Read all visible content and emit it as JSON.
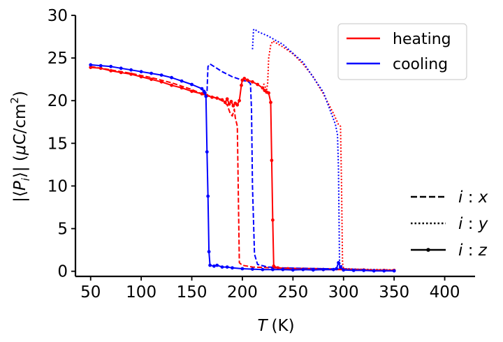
{
  "chart_data": {
    "type": "line",
    "xlabel_var": "T",
    "xlabel_unit": "(K)",
    "ylabel_prefix": "|⟨",
    "ylabel_var": "P",
    "ylabel_sub": "i",
    "ylabel_mid": "⟩| (",
    "ylabel_mu": "μ",
    "ylabel_unit": "C/cm",
    "ylabel_sup": "2",
    "ylabel_end": ")",
    "xlim": [
      35,
      430
    ],
    "ylim": [
      -0.6,
      30
    ],
    "xticks": [
      50,
      100,
      150,
      200,
      250,
      300,
      350,
      400
    ],
    "yticks": [
      0,
      5,
      10,
      15,
      20,
      25,
      30
    ],
    "colors": {
      "heating": "#ff0000",
      "cooling": "#0000ff"
    },
    "legend_colors": [
      {
        "label": "heating",
        "color": "#ff0000"
      },
      {
        "label": "cooling",
        "color": "#0000ff"
      }
    ],
    "legend_components": [
      {
        "var": "i",
        "sep": " : ",
        "comp": "x",
        "style": "dashed"
      },
      {
        "var": "i",
        "sep": " : ",
        "comp": "y",
        "style": "dotted"
      },
      {
        "var": "i",
        "sep": " : ",
        "comp": "z",
        "style": "solid-marker"
      }
    ],
    "series": [
      {
        "name": "heating x",
        "color": "heating",
        "style": "dashed",
        "x": [
          50,
          70,
          90,
          110,
          130,
          150,
          160,
          165,
          170,
          180,
          185,
          188,
          190,
          192,
          193,
          195,
          197,
          200,
          205,
          210,
          220,
          230,
          250,
          280,
          300,
          320
        ],
        "y": [
          24.0,
          23.6,
          23.2,
          22.7,
          22.1,
          21.3,
          20.8,
          20.6,
          20.5,
          20.0,
          19.5,
          18.5,
          18.2,
          19.0,
          18.0,
          17.0,
          1.0,
          0.7,
          0.6,
          0.5,
          0.45,
          0.4,
          0.35,
          0.3,
          0.25,
          0.2
        ]
      },
      {
        "name": "cooling x",
        "color": "cooling",
        "style": "dashed",
        "x": [
          320,
          300,
          280,
          260,
          240,
          225,
          215,
          212,
          210,
          209,
          208,
          206,
          200,
          190,
          180,
          172,
          168,
          166,
          165
        ],
        "y": [
          0.2,
          0.25,
          0.3,
          0.35,
          0.4,
          0.5,
          0.8,
          2.0,
          10.0,
          19.0,
          22.0,
          22.2,
          22.4,
          22.8,
          23.4,
          24.0,
          24.3,
          24.0,
          21.0
        ]
      },
      {
        "name": "heating y",
        "color": "heating",
        "style": "dotted",
        "x": [
          221,
          223,
          224,
          225,
          226,
          228,
          230,
          240,
          250,
          260,
          270,
          280,
          290,
          295,
          297,
          298,
          299,
          300,
          310,
          330,
          350
        ],
        "y": [
          22.0,
          21.5,
          21.3,
          22.0,
          25.0,
          26.5,
          27.0,
          26.3,
          25.5,
          24.3,
          22.8,
          20.8,
          18.5,
          17.2,
          17.0,
          10.0,
          1.0,
          0.3,
          0.25,
          0.2,
          0.15
        ]
      },
      {
        "name": "cooling y",
        "color": "cooling",
        "style": "dotted",
        "x": [
          350,
          320,
          300,
          296,
          295,
          294,
          292,
          280,
          260,
          240,
          225,
          215,
          212,
          211,
          210
        ],
        "y": [
          0.15,
          0.2,
          0.3,
          1.0,
          12.0,
          16.0,
          17.2,
          21.0,
          24.5,
          26.6,
          27.6,
          28.1,
          28.4,
          28.3,
          26.0
        ]
      },
      {
        "name": "heating z",
        "color": "heating",
        "style": "solid-marker",
        "x": [
          50,
          60,
          70,
          80,
          90,
          100,
          110,
          120,
          130,
          140,
          150,
          160,
          165,
          170,
          175,
          180,
          183,
          185,
          187,
          189,
          191,
          193,
          195,
          197,
          199,
          200,
          202,
          205,
          210,
          215,
          220,
          222,
          224,
          226,
          228,
          229,
          230,
          231,
          235,
          245,
          260,
          280,
          300,
          320,
          340,
          350
        ],
        "y": [
          23.9,
          23.8,
          23.5,
          23.3,
          23.1,
          22.8,
          22.5,
          22.2,
          21.8,
          21.5,
          21.1,
          20.8,
          20.6,
          20.4,
          20.3,
          20.1,
          19.8,
          20.2,
          19.6,
          19.9,
          19.4,
          19.7,
          19.5,
          20.0,
          21.8,
          22.4,
          22.6,
          22.4,
          22.2,
          21.9,
          21.5,
          21.2,
          21.0,
          20.9,
          19.8,
          13.0,
          6.0,
          0.6,
          0.4,
          0.3,
          0.25,
          0.2,
          0.2,
          0.15,
          0.1,
          0.1
        ]
      },
      {
        "name": "cooling z",
        "color": "cooling",
        "style": "solid-marker",
        "x": [
          350,
          340,
          330,
          320,
          310,
          300,
          297,
          295,
          293,
          290,
          280,
          270,
          260,
          250,
          240,
          230,
          220,
          210,
          200,
          190,
          185,
          180,
          175,
          172,
          168,
          167,
          166,
          165,
          164,
          163,
          162,
          160,
          150,
          140,
          130,
          120,
          110,
          100,
          90,
          80,
          70,
          60,
          50
        ],
        "y": [
          0.05,
          0.05,
          0.05,
          0.1,
          0.1,
          0.15,
          0.5,
          1.0,
          0.3,
          0.2,
          0.2,
          0.15,
          0.2,
          0.15,
          0.2,
          0.2,
          0.2,
          0.25,
          0.3,
          0.4,
          0.5,
          0.5,
          0.7,
          0.6,
          0.7,
          2.3,
          8.8,
          14.0,
          20.5,
          20.9,
          21.1,
          21.4,
          21.9,
          22.3,
          22.7,
          23.0,
          23.2,
          23.4,
          23.6,
          23.8,
          24.0,
          24.1,
          24.2
        ]
      }
    ]
  }
}
